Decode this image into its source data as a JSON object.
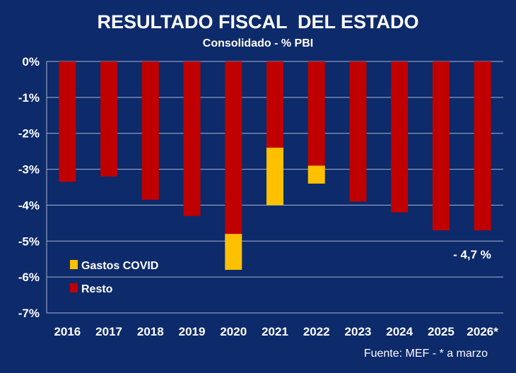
{
  "chart_data": {
    "type": "bar",
    "title": "RESULTADO FISCAL  DEL ESTADO",
    "subtitle": "Consolidado - % PBI",
    "categories": [
      "2016",
      "2017",
      "2018",
      "2019",
      "2020",
      "2021",
      "2022",
      "2023",
      "2024",
      "2025",
      "2026*"
    ],
    "series": [
      {
        "name": "Resto",
        "color": "#c00000",
        "values": [
          -3.35,
          -3.2,
          -3.85,
          -4.3,
          -4.8,
          -2.4,
          -2.9,
          -3.9,
          -4.2,
          -4.7,
          -4.7
        ]
      },
      {
        "name": "Gastos COVID",
        "color": "#ffc000",
        "values": [
          0,
          0,
          0,
          0,
          -1.0,
          -1.6,
          -0.5,
          0,
          0,
          0,
          0
        ]
      }
    ],
    "stacked": true,
    "ylim": [
      -7,
      0
    ],
    "yticks": [
      0,
      -1,
      -2,
      -3,
      -4,
      -5,
      -6,
      -7
    ],
    "ytick_labels": [
      "0%",
      "-1%",
      "-2%",
      "-3%",
      "-4%",
      "-5%",
      "-6%",
      "-7%"
    ],
    "grid": true,
    "legend": [
      "Gastos COVID",
      "Resto"
    ],
    "legend_placement": "bottom-left",
    "annotation": "- 4,7 %",
    "source": "Fuente: MEF - * a marzo"
  }
}
